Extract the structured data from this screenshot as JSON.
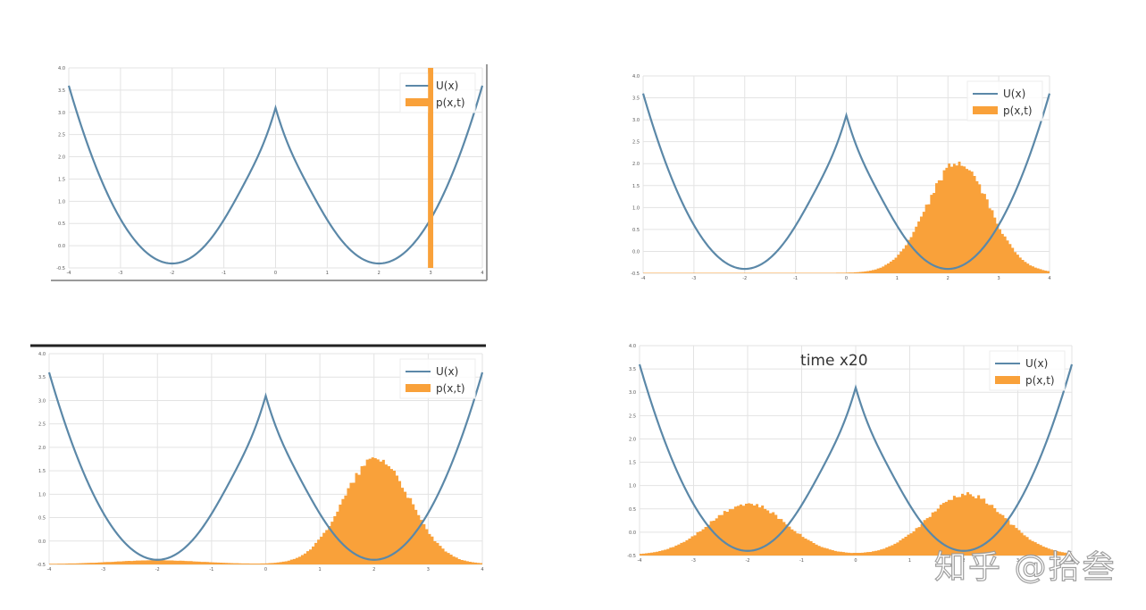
{
  "watermark": "知乎 @拾叁",
  "colors": {
    "potential": "#5b88a8",
    "histogram": "#f9a13a",
    "grid": "#e3e3e3",
    "axis_text": "#555555"
  },
  "chart_data": [
    {
      "id": "top-left",
      "type": "line+histogram",
      "title": "",
      "legend": [
        "U(x)",
        "p(x,t)"
      ],
      "xlim": [
        -4,
        4
      ],
      "ylim": [
        -0.5,
        4.0
      ],
      "xticks": [
        "-4",
        "-3",
        "-2",
        "-1",
        "0",
        "1",
        "2",
        "3",
        "4"
      ],
      "yticks": [
        "-0.5",
        "0.0",
        "0.5",
        "1.0",
        "1.5",
        "2.0",
        "2.5",
        "3.0",
        "3.5",
        "4.0"
      ],
      "potential": {
        "label": "U(x)",
        "minima": [
          [
            -2,
            -0.4
          ],
          [
            2,
            -0.4
          ]
        ],
        "maximum": [
          0,
          3.1
        ],
        "endpoints": [
          [
            -4,
            3.6
          ],
          [
            4,
            3.6
          ]
        ]
      },
      "histogram": {
        "label": "p(x,t)",
        "kind": "delta",
        "x": 3.0,
        "height": 4.5,
        "width": 0.1
      }
    },
    {
      "id": "top-right",
      "type": "line+histogram",
      "title": "",
      "legend": [
        "U(x)",
        "p(x,t)"
      ],
      "xlim": [
        -4,
        4
      ],
      "ylim": [
        -0.5,
        4.0
      ],
      "xticks": [
        "-4",
        "-3",
        "-2",
        "-1",
        "0",
        "1",
        "2",
        "3",
        "4"
      ],
      "yticks": [
        "-0.5",
        "0.0",
        "0.5",
        "1.0",
        "1.5",
        "2.0",
        "2.5",
        "3.0",
        "3.5",
        "4.0"
      ],
      "potential": {
        "label": "U(x)",
        "minima": [
          [
            -2,
            -0.4
          ],
          [
            2,
            -0.4
          ]
        ],
        "maximum": [
          0,
          3.1
        ],
        "endpoints": [
          [
            -4,
            3.6
          ],
          [
            4,
            3.6
          ]
        ]
      },
      "histogram": {
        "label": "p(x,t)",
        "kind": "gaussians",
        "components": [
          {
            "mean": 2.2,
            "sd": 0.62,
            "peak": 2.5
          }
        ],
        "baseline": -0.5
      }
    },
    {
      "id": "bottom-left",
      "type": "line+histogram",
      "title": "",
      "legend": [
        "U(x)",
        "p(x,t)"
      ],
      "xlim": [
        -4,
        4
      ],
      "ylim": [
        -0.5,
        4.0
      ],
      "xticks": [
        "-4",
        "-3",
        "-2",
        "-1",
        "0",
        "1",
        "2",
        "3",
        "4"
      ],
      "yticks": [
        "-0.5",
        "0.0",
        "0.5",
        "1.0",
        "1.5",
        "2.0",
        "2.5",
        "3.0",
        "3.5",
        "4.0"
      ],
      "potential": {
        "label": "U(x)",
        "minima": [
          [
            -2,
            -0.4
          ],
          [
            2,
            -0.4
          ]
        ],
        "maximum": [
          0,
          3.1
        ],
        "endpoints": [
          [
            -4,
            3.6
          ],
          [
            4,
            3.6
          ]
        ]
      },
      "histogram": {
        "label": "p(x,t)",
        "kind": "gaussians",
        "components": [
          {
            "mean": 2.05,
            "sd": 0.62,
            "peak": 2.25
          },
          {
            "mean": -2.0,
            "sd": 0.8,
            "peak": 0.08
          }
        ],
        "baseline": -0.5
      }
    },
    {
      "id": "bottom-right",
      "type": "line+histogram",
      "title": "time x20",
      "legend": [
        "U(x)",
        "p(x,t)"
      ],
      "xlim": [
        -4,
        4
      ],
      "ylim": [
        -0.5,
        4.0
      ],
      "xticks": [
        "-4",
        "-3",
        "-2",
        "-1",
        "0",
        "1",
        "2",
        "3",
        "4"
      ],
      "yticks": [
        "-0.5",
        "0.0",
        "0.5",
        "1.0",
        "1.5",
        "2.0",
        "2.5",
        "3.0",
        "3.5",
        "4.0"
      ],
      "potential": {
        "label": "U(x)",
        "minima": [
          [
            -2,
            -0.4
          ],
          [
            2,
            -0.4
          ]
        ],
        "maximum": [
          0,
          3.1
        ],
        "endpoints": [
          [
            -4,
            3.6
          ],
          [
            4,
            3.6
          ]
        ]
      },
      "histogram": {
        "label": "p(x,t)",
        "kind": "gaussians",
        "components": [
          {
            "mean": -2.0,
            "sd": 0.72,
            "peak": 1.1
          },
          {
            "mean": 2.05,
            "sd": 0.72,
            "peak": 1.3
          }
        ],
        "baseline": -0.5
      }
    }
  ]
}
